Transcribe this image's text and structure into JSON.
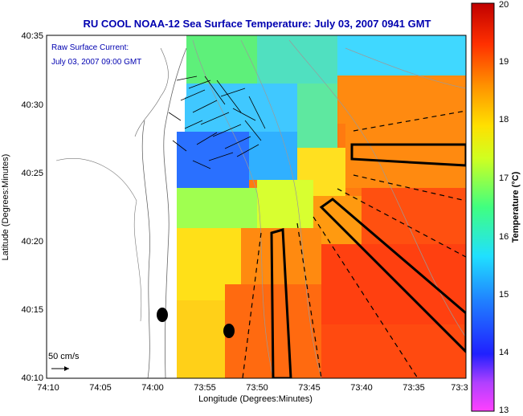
{
  "title": "RU COOL  NOAA-12  Sea Surface Temperature:  July 03, 2007 0941 GMT",
  "inset_label_1": "Raw Surface Current:",
  "inset_label_2": "July 03, 2007 09:00 GMT",
  "scale_label": "50 cm/s",
  "axes": {
    "xlabel": "Longitude (Degrees:Minutes)",
    "ylabel": "Latitude (Degrees:Minutes)",
    "x_ticks": [
      "74:10",
      "74:05",
      "74:00",
      "73:55",
      "73:50",
      "73:45",
      "73:40",
      "73:35",
      "73:3"
    ],
    "y_ticks": [
      "40:35",
      "40:30",
      "40:25",
      "40:20",
      "40:15",
      "40:10"
    ]
  },
  "colorbar": {
    "label": "Temperature (°C)",
    "ticks": [
      "20",
      "19",
      "18",
      "17",
      "16",
      "15",
      "14",
      "13"
    ],
    "min": 13,
    "max": 20
  },
  "colors": {
    "title_blue": "#0000b0",
    "land": "#ffffff",
    "water_hot": "#ff3000",
    "water_cool": "#3cc8ff"
  }
}
